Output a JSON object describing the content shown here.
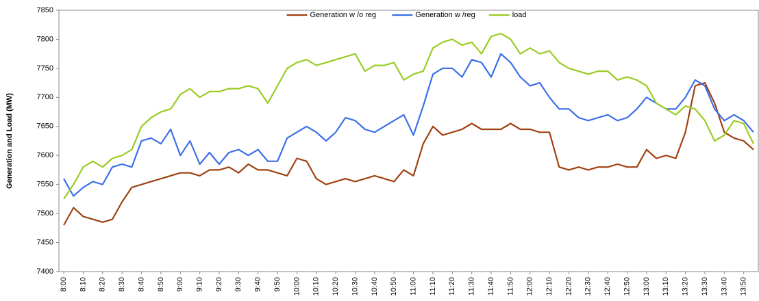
{
  "chart_data": {
    "type": "line",
    "y_label": "Generation and Load (MW)",
    "categories": [
      "8:00",
      null,
      "8:10",
      null,
      "8:20",
      null,
      "8:30",
      null,
      "8:40",
      null,
      "8:50",
      null,
      "9:00",
      null,
      "9:10",
      null,
      "9:20",
      null,
      "9:30",
      null,
      "9:40",
      null,
      "9:50",
      null,
      "10:00",
      null,
      "10:10",
      null,
      "10:20",
      null,
      "10:30",
      null,
      "10:40",
      null,
      "10:50",
      null,
      "11:00",
      null,
      "11:10",
      null,
      "11:20",
      null,
      "11:30",
      null,
      "11:40",
      null,
      "11:50",
      null,
      "12:00",
      null,
      "12:10",
      null,
      "12:20",
      null,
      "12:30",
      null,
      "12:40",
      null,
      "12:50",
      null,
      "13:00",
      null,
      "13:10",
      null,
      "13:20",
      null,
      "13:30",
      null,
      "13:40",
      null,
      "13:50",
      null
    ],
    "series": [
      {
        "name": "Generation w /o reg",
        "color": "#a0400f",
        "values": [
          7480,
          7510,
          7495,
          7490,
          7485,
          7490,
          7520,
          7545,
          7550,
          7555,
          7560,
          7565,
          7570,
          7570,
          7565,
          7575,
          7575,
          7580,
          7570,
          7585,
          7575,
          7575,
          7570,
          7565,
          7595,
          7590,
          7560,
          7550,
          7555,
          7560,
          7555,
          7560,
          7565,
          7560,
          7555,
          7575,
          7565,
          7620,
          7650,
          7635,
          7640,
          7645,
          7655,
          7645,
          7645,
          7645,
          7655,
          7645,
          7645,
          7640,
          7640,
          7580,
          7575,
          7580,
          7575,
          7580,
          7580,
          7585,
          7580,
          7580,
          7610,
          7595,
          7600,
          7595,
          7640,
          7720,
          7725,
          7690,
          7640,
          7630,
          7625,
          7610
        ]
      },
      {
        "name": "Generation w /reg",
        "color": "#3a6fe8",
        "values": [
          7560,
          7530,
          7545,
          7555,
          7550,
          7580,
          7585,
          7580,
          7625,
          7630,
          7620,
          7645,
          7600,
          7625,
          7585,
          7605,
          7585,
          7605,
          7610,
          7600,
          7610,
          7590,
          7590,
          7630,
          7640,
          7650,
          7640,
          7625,
          7640,
          7665,
          7660,
          7645,
          7640,
          7650,
          7660,
          7670,
          7635,
          7685,
          7740,
          7750,
          7750,
          7735,
          7765,
          7760,
          7735,
          7775,
          7760,
          7735,
          7720,
          7725,
          7700,
          7680,
          7680,
          7665,
          7660,
          7665,
          7670,
          7660,
          7665,
          7680,
          7700,
          7690,
          7680,
          7680,
          7700,
          7730,
          7720,
          7680,
          7660,
          7670,
          7660,
          7640
        ]
      },
      {
        "name": "load",
        "color": "#99cc22",
        "values": [
          7525,
          7550,
          7580,
          7590,
          7580,
          7595,
          7600,
          7610,
          7650,
          7665,
          7675,
          7680,
          7705,
          7715,
          7700,
          7710,
          7710,
          7715,
          7715,
          7720,
          7715,
          7690,
          7720,
          7750,
          7760,
          7765,
          7755,
          7760,
          7765,
          7770,
          7775,
          7745,
          7755,
          7755,
          7760,
          7730,
          7740,
          7745,
          7785,
          7795,
          7800,
          7790,
          7795,
          7775,
          7805,
          7810,
          7800,
          7775,
          7785,
          7775,
          7780,
          7760,
          7750,
          7745,
          7740,
          7745,
          7745,
          7730,
          7735,
          7730,
          7720,
          7690,
          7680,
          7670,
          7685,
          7680,
          7660,
          7625,
          7635,
          7660,
          7655,
          7620
        ]
      }
    ],
    "ylim": [
      7400,
      7850
    ],
    "yticks": [
      7400,
      7450,
      7500,
      7550,
      7600,
      7650,
      7700,
      7750,
      7800,
      7850
    ],
    "grid": false,
    "legend": "top"
  }
}
